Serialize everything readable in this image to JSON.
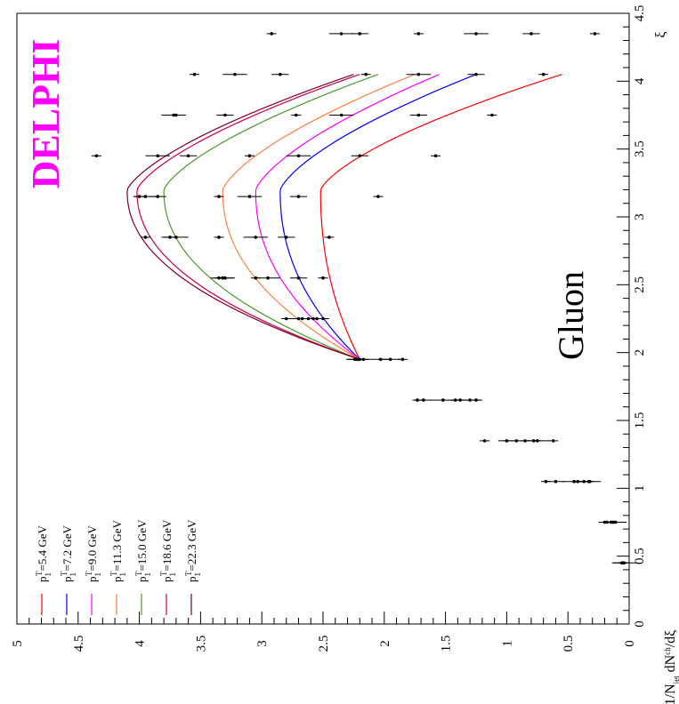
{
  "chart_data": {
    "type": "line",
    "title": "DELPHI",
    "brand_color": "#ff00ff",
    "annotation": "Gluon",
    "xlabel": "ξ",
    "ylabel_parts": {
      "a": "1/N",
      "b": "jet",
      "c": " dN",
      "d": "ch",
      "e": "/dξ"
    },
    "xlim": [
      0,
      4.5
    ],
    "ylim": [
      0,
      5
    ],
    "x_ticks": [
      "0",
      "0.5",
      "1",
      "1.5",
      "2",
      "2.5",
      "3",
      "3.5",
      "4",
      "4.5"
    ],
    "y_ticks": [
      "0",
      "0.5",
      "1",
      "1.5",
      "2",
      "2.5",
      "3",
      "3.5",
      "4",
      "4.5",
      "5"
    ],
    "legend_placement": "bottom-left",
    "series": [
      {
        "name": "p₁ᵀ=5.4 GeV",
        "pre": "p",
        "sub": "1",
        "sup": "T",
        "post": "=5.4 GeV",
        "color": "#ff0000",
        "fit_peak": 2.52,
        "fit_range": [
          1.95,
          4.05
        ],
        "fit_a": 0.55,
        "fit_b": 0.18
      },
      {
        "name": "p₁ᵀ=7.2 GeV",
        "pre": "p",
        "sub": "1",
        "sup": "T",
        "post": "=7.2 GeV",
        "color": "#0000ff",
        "fit_peak": 2.85,
        "fit_range": [
          1.95,
          4.05
        ],
        "fit_a": 1.25,
        "fit_b": 0.2
      },
      {
        "name": "p₁ᵀ=9.0 GeV",
        "pre": "p",
        "sub": "1",
        "sup": "T",
        "post": "=9.0 GeV",
        "color": "#ff00ff",
        "fit_peak": 3.05,
        "fit_range": [
          1.95,
          4.05
        ],
        "fit_a": 1.55,
        "fit_b": 0.2
      },
      {
        "name": "p₁ᵀ=11.3 GeV",
        "pre": "p",
        "sub": "1",
        "sup": "T",
        "post": "=11.3 GeV",
        "color": "#ff8040",
        "fit_peak": 3.32,
        "fit_range": [
          1.95,
          4.05
        ],
        "fit_a": 1.75,
        "fit_b": 0.2
      },
      {
        "name": "p₁ᵀ=15.0 GeV",
        "pre": "p",
        "sub": "1",
        "sup": "T",
        "post": "=15.0 GeV",
        "color": "#4c9a2a",
        "fit_peak": 3.8,
        "fit_range": [
          1.95,
          4.05
        ],
        "fit_a": 2.05,
        "fit_b": 0.2
      },
      {
        "name": "p₁ᵀ=18.6 GeV",
        "pre": "p",
        "sub": "1",
        "sup": "T",
        "post": "=18.6 GeV",
        "color": "#cc0044",
        "fit_peak": 4.02,
        "fit_range": [
          1.95,
          4.05
        ],
        "fit_a": 2.2,
        "fit_b": 0.2
      },
      {
        "name": "p₁ᵀ=22.3 GeV",
        "pre": "p",
        "sub": "1",
        "sup": "T",
        "post": "=22.3 GeV",
        "color": "#800020",
        "fit_peak": 4.1,
        "fit_range": [
          1.95,
          4.05
        ],
        "fit_a": 2.25,
        "fit_b": 0.2
      }
    ],
    "data_points": [
      {
        "x": 0.45,
        "y": [
          0.05,
          0.06,
          0.04,
          0.05
        ]
      },
      {
        "x": 0.75,
        "y": [
          0.2,
          0.18,
          0.15,
          0.14,
          0.13,
          0.12,
          0.11
        ]
      },
      {
        "x": 1.05,
        "y": [
          0.68,
          0.6,
          0.45,
          0.42,
          0.37,
          0.33,
          0.32
        ]
      },
      {
        "x": 1.35,
        "y": [
          1.18,
          1.0,
          0.92,
          0.85,
          0.78,
          0.75,
          0.62
        ]
      },
      {
        "x": 1.65,
        "y": [
          1.73,
          1.68,
          1.52,
          1.42,
          1.38,
          1.3,
          1.25
        ]
      },
      {
        "x": 1.95,
        "y": [
          2.22,
          2.24,
          2.2,
          2.17,
          2.03,
          1.95,
          1.85
        ]
      },
      {
        "x": 2.25,
        "y": [
          2.8,
          2.7,
          2.67,
          2.62,
          2.58,
          2.55,
          2.5
        ]
      },
      {
        "x": 2.55,
        "y": [
          2.5,
          2.7,
          2.95,
          3.05,
          3.3,
          3.32,
          3.35
        ]
      },
      {
        "x": 2.85,
        "y": [
          2.45,
          2.8,
          3.05,
          3.35,
          3.75,
          3.7,
          3.95
        ]
      },
      {
        "x": 3.15,
        "y": [
          2.05,
          2.7,
          3.1,
          3.35,
          3.85,
          3.95,
          4.0
        ]
      },
      {
        "x": 3.45,
        "y": [
          1.58,
          2.2,
          2.7,
          3.1,
          3.6,
          3.85,
          4.35
        ]
      },
      {
        "x": 3.75,
        "y": [
          1.12,
          1.72,
          2.35,
          2.72,
          3.3,
          3.72,
          3.7
        ]
      },
      {
        "x": 4.05,
        "y": [
          0.7,
          1.25,
          1.72,
          2.15,
          2.85,
          3.22,
          3.55
        ]
      },
      {
        "x": 4.35,
        "y": [
          0.28,
          0.8,
          1.25,
          1.72,
          2.2,
          2.35,
          2.92
        ]
      }
    ]
  }
}
